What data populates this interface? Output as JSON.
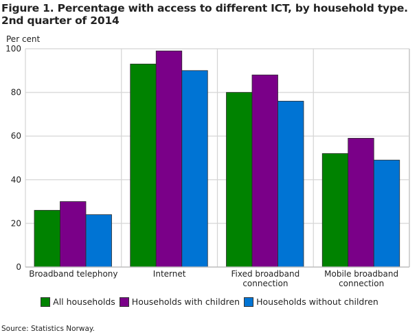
{
  "chart_data": {
    "type": "bar",
    "title": "Figure 1. Percentage with access to different ICT, by household type. 2nd quarter of 2014",
    "title_lines": [
      "Figure 1. Percentage with access to different ICT, by household type.",
      "2nd quarter of 2014"
    ],
    "ylabel": "Per cent",
    "xlabel": "",
    "ylim": [
      0,
      100
    ],
    "yticks": [
      0,
      20,
      40,
      60,
      80,
      100
    ],
    "grid": true,
    "categories": [
      "Broadband telephony",
      "Internet",
      "Fixed broadband connection",
      "Mobile broadband connection"
    ],
    "category_lines": [
      [
        "Broadband telephony"
      ],
      [
        "Internet"
      ],
      [
        "Fixed broadband",
        "connection"
      ],
      [
        "Mobile broadband",
        "connection"
      ]
    ],
    "series": [
      {
        "name": "All households",
        "color": "#008200",
        "values": [
          26,
          93,
          80,
          52
        ]
      },
      {
        "name": "Households with children",
        "color": "#7a0088",
        "values": [
          30,
          99,
          88,
          59
        ]
      },
      {
        "name": "Households without children",
        "color": "#0074d4",
        "values": [
          24,
          90,
          76,
          49
        ]
      }
    ],
    "legend_position": "bottom",
    "source": "Source: Statistics Norway."
  }
}
